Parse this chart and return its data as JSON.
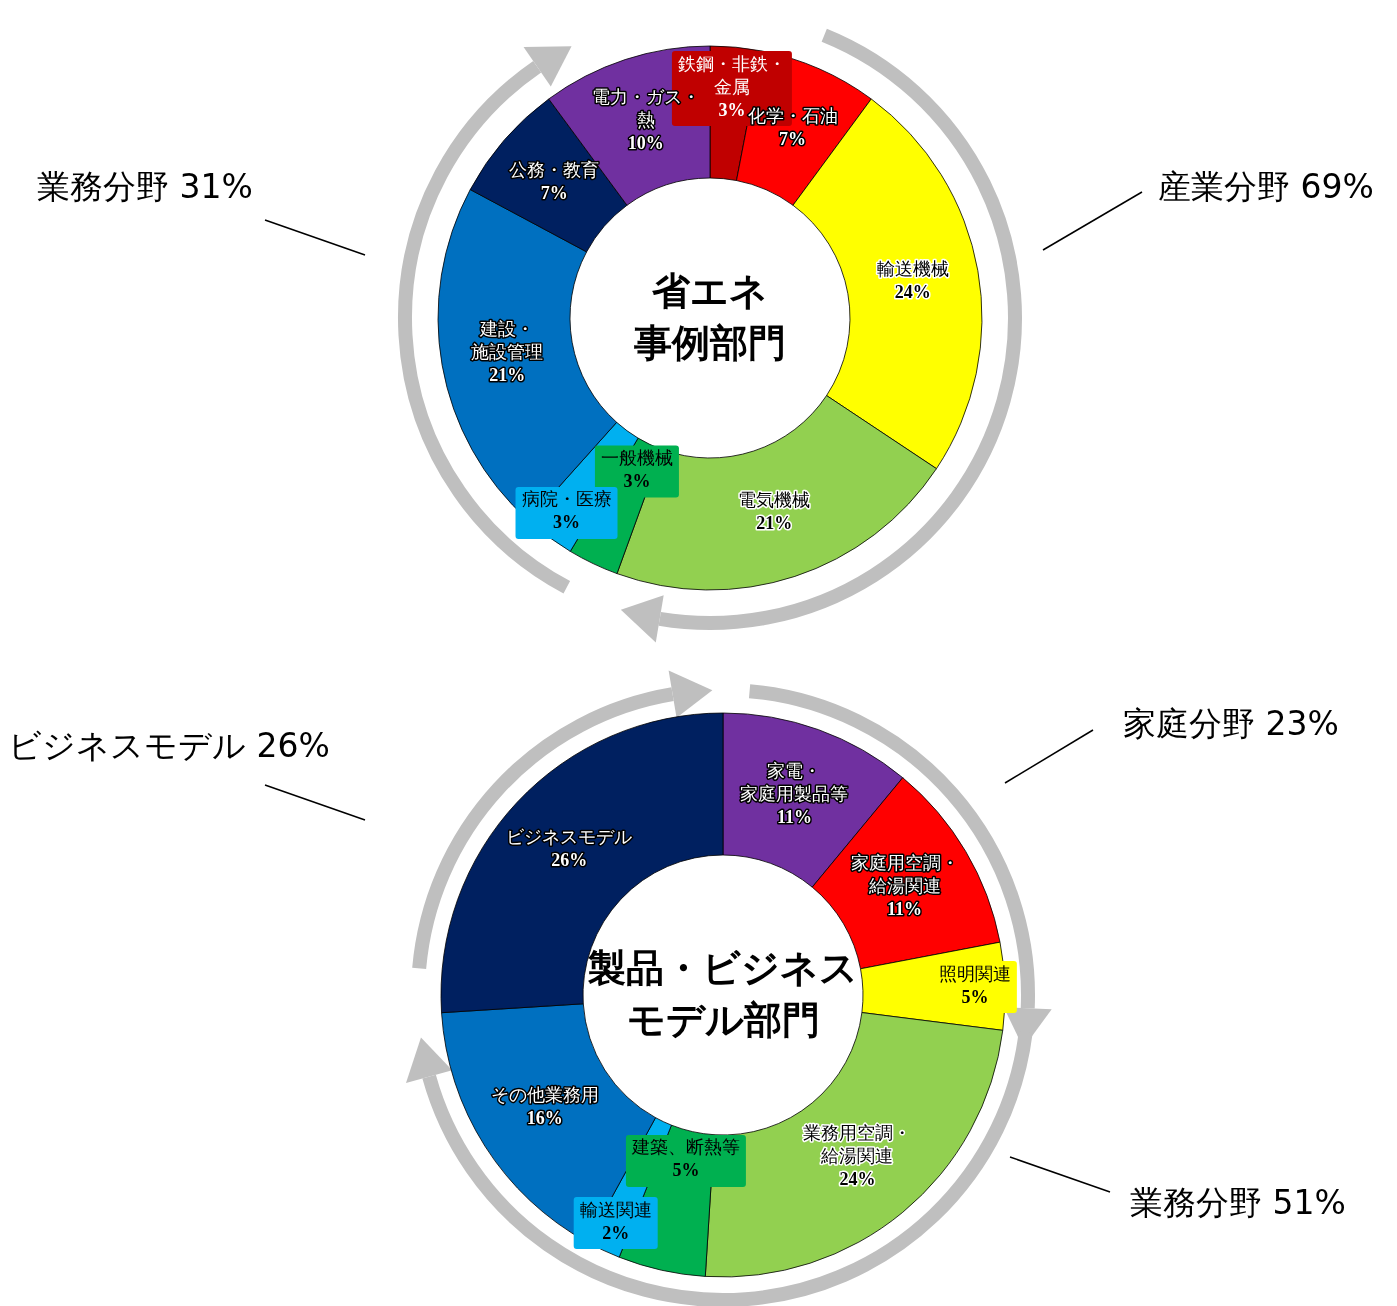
{
  "chart_data": [
    {
      "type": "donut",
      "title": "省エネ事例部門",
      "categories": [
        "鉄鋼・非鉄・金属",
        "化学・石油",
        "輸送機械",
        "電気機械",
        "一般機械",
        "病院・医療",
        "建設・施設管理",
        "公務・教育",
        "電力・ガス・熱"
      ],
      "values": [
        3,
        7,
        24,
        21,
        3,
        3,
        21,
        7,
        10
      ],
      "value_labels": [
        "3%",
        "7%",
        "24%",
        "21%",
        "3%",
        "3%",
        "21%",
        "7%",
        "10%"
      ],
      "colors": [
        "#c00000",
        "#ff0000",
        "#ffff00",
        "#92d050",
        "#00b050",
        "#00b0f0",
        "#0070c0",
        "#002060",
        "#7030a0"
      ],
      "annotations": [
        "業務分野 31%",
        "産業分野 69%"
      ]
    },
    {
      "type": "donut",
      "title": "製品・ビジネスモデル部門",
      "categories": [
        "家電・家庭用製品等",
        "家庭用空調・給湯関連",
        "照明関連",
        "業務用空調・給湯関連",
        "建築、断熱等",
        "輸送関連",
        "その他業務用",
        "ビジネスモデル"
      ],
      "values": [
        11,
        11,
        5,
        24,
        5,
        2,
        16,
        26
      ],
      "value_labels": [
        "11%",
        "11%",
        "5%",
        "24%",
        "5%",
        "2%",
        "16%",
        "26%"
      ],
      "colors": [
        "#7030a0",
        "#ff0000",
        "#ffff00",
        "#92d050",
        "#00b050",
        "#00b0f0",
        "#0070c0",
        "#002060"
      ],
      "annotations": [
        "家庭分野 23%",
        "ビジネスモデル 26%",
        "業務分野 51%"
      ]
    }
  ]
}
